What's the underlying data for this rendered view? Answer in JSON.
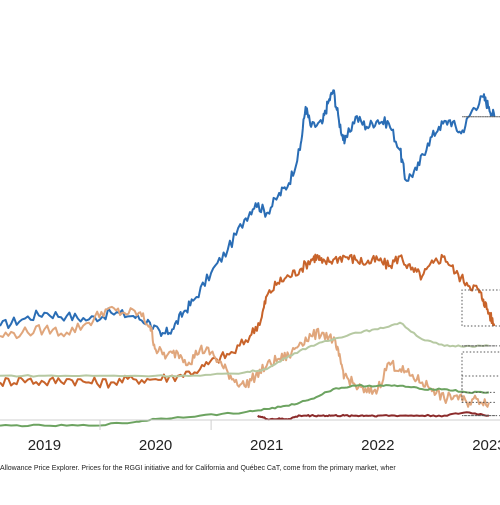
{
  "chart_data": {
    "type": "line",
    "x_ticks": [
      "2019",
      "2020",
      "2021",
      "2022",
      "2023"
    ],
    "x_range": [
      2018.6,
      2023.1
    ],
    "y_range": [
      0,
      100
    ],
    "grid": false,
    "legend": "none",
    "footnote": "Allowance Price Explorer. Prices for the RGGI initiative and for California and Québec CaT, come from the primary market, wher",
    "series": [
      {
        "color": "#2a6db5",
        "width": 2,
        "x": [
          2018.6,
          2018.8,
          2019.0,
          2019.2,
          2019.4,
          2019.6,
          2019.8,
          2019.95,
          2020.05,
          2020.15,
          2020.25,
          2020.35,
          2020.5,
          2020.65,
          2020.8,
          2020.9,
          2021.0,
          2021.1,
          2021.2,
          2021.3,
          2021.35,
          2021.4,
          2021.5,
          2021.55,
          2021.6,
          2021.65,
          2021.7,
          2021.8,
          2021.9,
          2022.0,
          2022.1,
          2022.2,
          2022.25,
          2022.35,
          2022.45,
          2022.55,
          2022.65,
          2022.75,
          2022.85,
          2022.95,
          2023.0,
          2023.05
        ],
        "y": [
          25,
          27,
          29,
          28,
          27,
          29,
          28,
          26,
          22,
          24,
          29,
          33,
          41,
          48,
          57,
          62,
          59,
          64,
          68,
          78,
          91,
          85,
          86,
          92,
          96,
          87,
          80,
          88,
          85,
          87,
          86,
          78,
          69,
          72,
          80,
          85,
          87,
          83,
          90,
          94,
          91,
          88
        ]
      },
      {
        "color": "#c8632a",
        "width": 2,
        "x": [
          2018.6,
          2018.8,
          2019.0,
          2019.2,
          2019.4,
          2019.6,
          2019.8,
          2020.0,
          2020.2,
          2020.4,
          2020.55,
          2020.7,
          2020.85,
          2020.95,
          2021.0,
          2021.1,
          2021.2,
          2021.3,
          2021.4,
          2021.45,
          2021.5,
          2021.6,
          2021.7,
          2021.8,
          2021.9,
          2022.0,
          2022.1,
          2022.2,
          2022.3,
          2022.4,
          2022.5,
          2022.6,
          2022.7,
          2022.8,
          2022.9,
          2022.95,
          2023.0,
          2023.05
        ],
        "y": [
          8,
          9,
          8,
          9,
          8,
          8,
          9,
          9,
          10,
          12,
          15,
          17,
          22,
          27,
          34,
          38,
          40,
          42,
          45,
          46,
          44,
          45,
          46,
          45,
          44,
          45,
          43,
          46,
          42,
          40,
          44,
          46,
          41,
          38,
          36,
          33,
          29,
          25
        ]
      },
      {
        "color": "#e0a67c",
        "width": 2,
        "x": [
          2018.6,
          2018.8,
          2019.0,
          2019.2,
          2019.4,
          2019.55,
          2019.7,
          2019.85,
          2019.95,
          2020.0,
          2020.1,
          2020.2,
          2020.3,
          2020.4,
          2020.5,
          2020.6,
          2020.7,
          2020.8,
          2020.9,
          2021.0,
          2021.1,
          2021.2,
          2021.3,
          2021.4,
          2021.5,
          2021.6,
          2021.65,
          2021.7,
          2021.8,
          2021.9,
          2022.0,
          2022.1,
          2022.2,
          2022.3,
          2022.4,
          2022.5,
          2022.6,
          2022.7,
          2022.8,
          2022.9,
          2023.0
        ],
        "y": [
          22,
          23,
          24,
          23,
          26,
          30,
          29,
          29,
          25,
          18,
          16,
          17,
          14,
          18,
          17,
          13,
          9,
          7,
          10,
          13,
          15,
          16,
          20,
          22,
          23,
          21,
          16,
          10,
          7,
          5,
          6,
          14,
          12,
          10,
          8,
          6,
          3,
          4,
          2,
          3,
          2
        ]
      },
      {
        "color": "#b6c9a2",
        "width": 2,
        "x": [
          2018.6,
          2019.0,
          2019.5,
          2020.0,
          2020.4,
          2020.8,
          2021.0,
          2021.2,
          2021.4,
          2021.6,
          2021.8,
          2022.0,
          2022.2,
          2022.4,
          2022.6,
          2022.8,
          2023.0
        ],
        "y": [
          10,
          10,
          10,
          10,
          10,
          11,
          12,
          16,
          19,
          21,
          23,
          24,
          26,
          21,
          19,
          19,
          19
        ]
      },
      {
        "color": "#6ca360",
        "width": 2,
        "x": [
          2018.6,
          2019.0,
          2019.4,
          2019.8,
          2020.0,
          2020.4,
          2020.8,
          2021.0,
          2021.2,
          2021.4,
          2021.6,
          2021.8,
          2022.0,
          2022.2,
          2022.4,
          2022.6,
          2022.8,
          2023.0
        ],
        "y": [
          -5,
          -5,
          -5,
          -4,
          -3,
          -2,
          -1,
          0,
          1,
          3,
          6,
          7,
          7,
          7,
          6,
          6,
          5,
          5
        ]
      },
      {
        "color": "#8b2a2a",
        "width": 2,
        "x": [
          2020.92,
          2021.0,
          2021.1,
          2021.2,
          2021.3,
          2021.4,
          2021.5,
          2021.6,
          2021.7,
          2021.8,
          2021.9,
          2022.0,
          2022.2,
          2022.4,
          2022.6,
          2022.8,
          2023.0
        ],
        "y": [
          -2,
          -3,
          -3,
          -3,
          -2,
          -2,
          -2,
          -2,
          -2,
          -2,
          -2,
          -2,
          -2,
          -2,
          -2,
          -1,
          -2
        ]
      }
    ]
  }
}
